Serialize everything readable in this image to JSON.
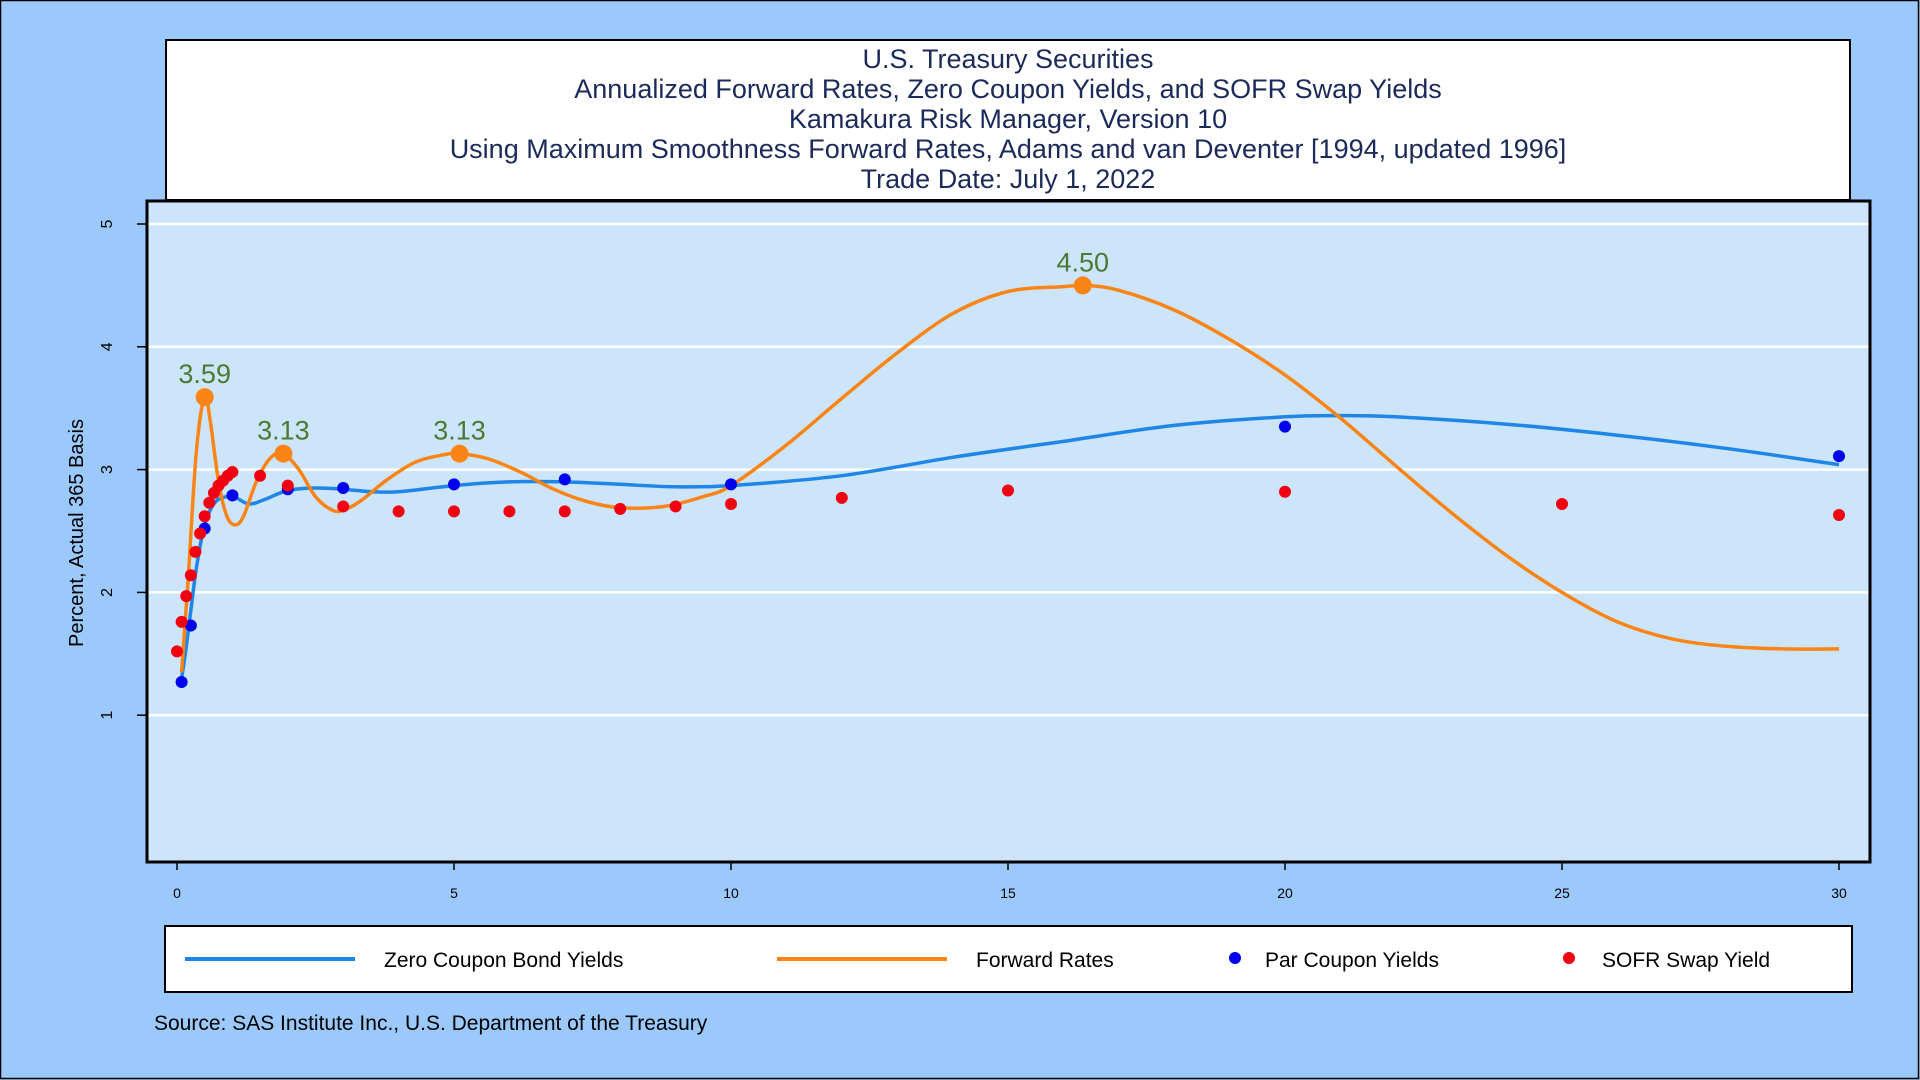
{
  "colors": {
    "background": "#9bc9fb",
    "plot_area": "#cce5fb",
    "zero_coupon": "#1f86e8",
    "forward": "#fa8415",
    "par": "#0000f0",
    "sofr": "#f00010",
    "peak_label": "#4b7a32",
    "text": "#1c2a5a"
  },
  "chart_data": {
    "type": "line",
    "title_lines": [
      "U.S. Treasury Securities",
      "Annualized Forward Rates, Zero Coupon Yields, and SOFR Swap Yields",
      "Kamakura Risk Manager, Version 10",
      "Using Maximum Smoothness Forward Rates, Adams and van Deventer [1994, updated 1996]",
      "Trade Date: July 1, 2022"
    ],
    "ylabel": "Percent, Actual 365 Basis",
    "xlabel": "",
    "xlim": [
      0,
      30
    ],
    "ylim": [
      0,
      5
    ],
    "x_ticks": [
      "0",
      "5",
      "10",
      "15",
      "20",
      "25",
      "30"
    ],
    "y_ticks": [
      "1",
      "2",
      "3",
      "4",
      "5"
    ],
    "grid": true,
    "legend_position": "bottom",
    "source": "Source: SAS Institute Inc., U.S. Department of the Treasury",
    "series": [
      {
        "name": "Zero Coupon Bond Yields",
        "kind": "line",
        "x": [
          0.083,
          0.15,
          0.25,
          0.35,
          0.5,
          0.7,
          1.0,
          1.3,
          1.6,
          2.0,
          2.5,
          3.0,
          3.5,
          4.0,
          5.0,
          6.0,
          7.0,
          8.0,
          9.0,
          10.0,
          12.0,
          14.0,
          16.0,
          18.0,
          20.0,
          21.0,
          22.0,
          24.0,
          26.0,
          28.0,
          30.0
        ],
        "y": [
          1.3,
          1.5,
          1.85,
          2.2,
          2.55,
          2.74,
          2.78,
          2.72,
          2.76,
          2.83,
          2.85,
          2.84,
          2.82,
          2.82,
          2.87,
          2.9,
          2.9,
          2.88,
          2.86,
          2.87,
          2.95,
          3.1,
          3.23,
          3.36,
          3.43,
          3.44,
          3.43,
          3.37,
          3.28,
          3.17,
          3.04
        ]
      },
      {
        "name": "Forward Rates",
        "kind": "line",
        "x": [
          0.083,
          0.2,
          0.35,
          0.5,
          0.6,
          0.75,
          0.9,
          1.05,
          1.2,
          1.45,
          1.7,
          1.92,
          2.2,
          2.5,
          2.8,
          3.0,
          3.3,
          3.8,
          4.3,
          4.8,
          5.1,
          5.6,
          6.2,
          6.8,
          7.4,
          8.0,
          8.8,
          9.5,
          10.0,
          11.0,
          12.0,
          13.0,
          14.0,
          15.0,
          16.0,
          16.4,
          17.0,
          18.0,
          19.0,
          20.0,
          21.0,
          22.0,
          23.0,
          24.0,
          25.0,
          26.0,
          27.0,
          28.0,
          29.0,
          30.0
        ],
        "y": [
          1.35,
          2.1,
          3.15,
          3.59,
          3.4,
          2.9,
          2.62,
          2.55,
          2.62,
          2.92,
          3.1,
          3.13,
          3.0,
          2.78,
          2.67,
          2.67,
          2.74,
          2.92,
          3.06,
          3.12,
          3.13,
          3.09,
          2.98,
          2.84,
          2.74,
          2.69,
          2.7,
          2.78,
          2.87,
          3.2,
          3.58,
          3.95,
          4.27,
          4.45,
          4.49,
          4.5,
          4.46,
          4.3,
          4.06,
          3.77,
          3.42,
          3.03,
          2.65,
          2.3,
          2.0,
          1.76,
          1.62,
          1.56,
          1.54,
          1.54
        ]
      },
      {
        "name": "Par Coupon Yields",
        "kind": "scatter",
        "x": [
          0.083,
          0.25,
          0.5,
          1.0,
          2.0,
          3.0,
          5.0,
          7.0,
          10.0,
          20.0,
          30.0
        ],
        "y": [
          1.27,
          1.73,
          2.52,
          2.79,
          2.84,
          2.85,
          2.88,
          2.92,
          2.88,
          3.35,
          3.11
        ]
      },
      {
        "name": "SOFR Swap Yield",
        "kind": "scatter",
        "x": [
          0.0,
          0.083,
          0.167,
          0.25,
          0.333,
          0.417,
          0.5,
          0.583,
          0.667,
          0.75,
          0.833,
          0.917,
          1.0,
          1.5,
          2.0,
          3.0,
          4.0,
          5.0,
          6.0,
          7.0,
          8.0,
          9.0,
          10.0,
          12.0,
          15.0,
          20.0,
          25.0,
          30.0
        ],
        "y": [
          1.52,
          1.76,
          1.97,
          2.14,
          2.33,
          2.48,
          2.62,
          2.73,
          2.81,
          2.87,
          2.91,
          2.95,
          2.98,
          2.95,
          2.87,
          2.7,
          2.66,
          2.66,
          2.66,
          2.66,
          2.68,
          2.7,
          2.72,
          2.77,
          2.83,
          2.82,
          2.72,
          2.63
        ]
      }
    ],
    "annotations": [
      {
        "label": "3.59",
        "x": 0.5,
        "y": 3.59
      },
      {
        "label": "3.13",
        "x": 1.92,
        "y": 3.13
      },
      {
        "label": "3.13",
        "x": 5.1,
        "y": 3.13
      },
      {
        "label": "4.50",
        "x": 16.35,
        "y": 4.5
      }
    ]
  }
}
